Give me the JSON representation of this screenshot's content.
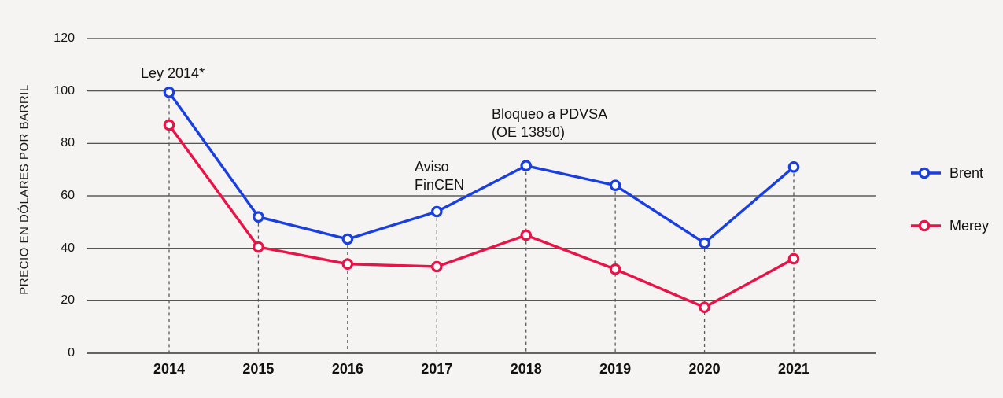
{
  "colors": {
    "background": "#f5f4f2",
    "grid": "#3d3d3d",
    "axis_line": "#333333",
    "dashed_guide": "#5a5a5a",
    "text": "#141414",
    "marker_fill": "#ffffff",
    "brent": "#1a3fe0",
    "merey": "#e91348"
  },
  "chart_data": {
    "type": "line",
    "title": "",
    "xlabel": "",
    "ylabel": "PRECIO EN DÓLARES POR BARRIL",
    "categories": [
      "2014",
      "2015",
      "2016",
      "2017",
      "2018",
      "2019",
      "2020",
      "2021"
    ],
    "series": [
      {
        "name": "Brent",
        "color_key": "brent",
        "values": [
          99.5,
          52,
          43.5,
          54,
          71.5,
          64,
          42,
          71
        ]
      },
      {
        "name": "Merey",
        "color_key": "merey",
        "values": [
          87,
          40.5,
          34,
          33,
          45,
          32,
          17.5,
          36
        ]
      }
    ],
    "ylim": [
      0,
      120
    ],
    "yticks": [
      0,
      20,
      40,
      60,
      80,
      100,
      120
    ],
    "grid": "horizontal-only",
    "legend_position": "right",
    "marker_style": "open-circle",
    "guide_lines": "vertical-dashed-from-top-point-to-axis",
    "annotations": [
      {
        "id": "ley-2014",
        "lines": [
          "Ley 2014*"
        ],
        "near_year": "2014"
      },
      {
        "id": "aviso-fincen",
        "lines": [
          "Aviso",
          "FinCEN"
        ],
        "near_year": "2017"
      },
      {
        "id": "bloqueo-pdvsa",
        "lines": [
          "Bloqueo a PDVSA",
          "(OE 13850)"
        ],
        "near_year": "2018"
      }
    ]
  }
}
